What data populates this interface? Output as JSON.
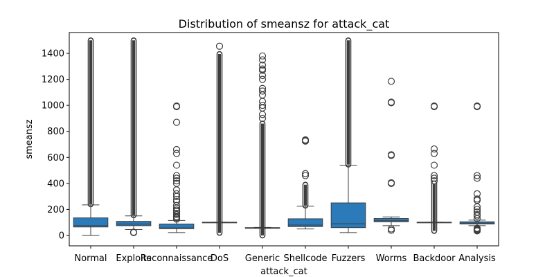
{
  "chart_data": {
    "type": "box",
    "title": "Distribution of smeansz for attack_cat",
    "xlabel": "attack_cat",
    "ylabel": "smeansz",
    "ylim": [
      -80,
      1560
    ],
    "yticks": [
      0,
      200,
      400,
      600,
      800,
      1000,
      1200,
      1400
    ],
    "grid": false,
    "color": "#2b7bba",
    "outlier_color": "#3d3d3d",
    "categories": [
      "Normal",
      "Exploits",
      "Reconnaissance",
      "DoS",
      "Generic",
      "Shellcode",
      "Fuzzers",
      "Worms",
      "Backdoor",
      "Analysis"
    ],
    "boxes": [
      {
        "min": 0,
        "q1": 65,
        "median": 75,
        "q3": 135,
        "max": 235,
        "outliers": [],
        "outlier_range": [
          240,
          1500
        ]
      },
      {
        "min": 45,
        "q1": 75,
        "median": 88,
        "q3": 108,
        "max": 150,
        "outliers": [
          22,
          25
        ],
        "outlier_range": [
          155,
          1500
        ]
      },
      {
        "min": 22,
        "q1": 52,
        "median": 58,
        "q3": 88,
        "max": 115,
        "outliers": [
          125,
          135,
          145,
          160,
          170,
          185,
          195,
          210,
          230,
          260,
          275,
          300,
          320,
          350,
          400,
          420,
          440,
          460,
          540,
          630,
          660,
          870,
          990,
          995
        ],
        "outlier_range": null
      },
      {
        "min": 100,
        "q1": 100,
        "median": 100,
        "q3": 102,
        "max": 102,
        "outliers": [
          1455
        ],
        "outlier_range": [
          20,
          1395
        ]
      },
      {
        "min": 55,
        "q1": 57,
        "median": 58,
        "q3": 60,
        "max": 62,
        "outliers": [
          900,
          930,
          980,
          1000,
          1030,
          1080,
          1110,
          1130,
          1200,
          1230,
          1270,
          1280,
          1310,
          1350,
          1380
        ],
        "outlier_range": [
          0,
          860
        ]
      },
      {
        "min": 50,
        "q1": 68,
        "median": 80,
        "q3": 128,
        "max": 225,
        "outliers": [
          460,
          475,
          725,
          730,
          735
        ],
        "outlier_range": [
          230,
          390
        ]
      },
      {
        "min": 22,
        "q1": 60,
        "median": 90,
        "q3": 250,
        "max": 540,
        "outliers": [],
        "outlier_range": [
          545,
          1500
        ]
      },
      {
        "min": 75,
        "q1": 105,
        "median": 113,
        "q3": 130,
        "max": 142,
        "outliers": [
          40,
          50,
          400,
          405,
          615,
          620,
          1020,
          1025,
          1185
        ],
        "outlier_range": null
      },
      {
        "min": 100,
        "q1": 100,
        "median": 100,
        "q3": 102,
        "max": 102,
        "outliers": [
          420,
          440,
          460,
          540,
          630,
          665,
          990,
          995
        ],
        "outlier_range": [
          35,
          400
        ]
      },
      {
        "min": 75,
        "q1": 88,
        "median": 95,
        "q3": 105,
        "max": 118,
        "outliers": [
          35,
          40,
          45,
          50,
          55,
          130,
          150,
          160,
          180,
          200,
          220,
          270,
          280,
          320,
          440,
          460,
          990,
          995
        ],
        "outlier_range": null
      }
    ]
  }
}
